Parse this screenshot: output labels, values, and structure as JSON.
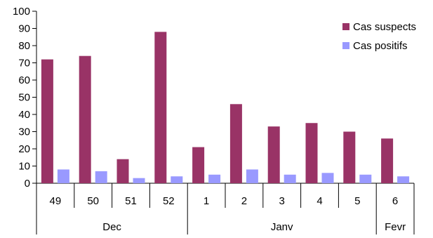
{
  "chart_data": {
    "type": "bar",
    "categories": [
      "49",
      "50",
      "51",
      "52",
      "1",
      "2",
      "3",
      "4",
      "5",
      "6"
    ],
    "groups": [
      {
        "label": "Dec",
        "count": 4
      },
      {
        "label": "Janv",
        "count": 5
      },
      {
        "label": "Fevr",
        "count": 1
      }
    ],
    "series": [
      {
        "name": "Cas suspects",
        "color": "#993366",
        "values": [
          72,
          74,
          14,
          88,
          21,
          46,
          33,
          35,
          30,
          26
        ]
      },
      {
        "name": "Cas positifs",
        "color": "#9999ff",
        "values": [
          8,
          7,
          3,
          4,
          5,
          8,
          5,
          6,
          5,
          4
        ]
      }
    ],
    "ylim": [
      0,
      100
    ],
    "yticks": [
      "0",
      "10",
      "20",
      "30",
      "40",
      "50",
      "60",
      "70",
      "80",
      "90",
      "100"
    ],
    "grid": false,
    "legend_position": "top-right"
  }
}
